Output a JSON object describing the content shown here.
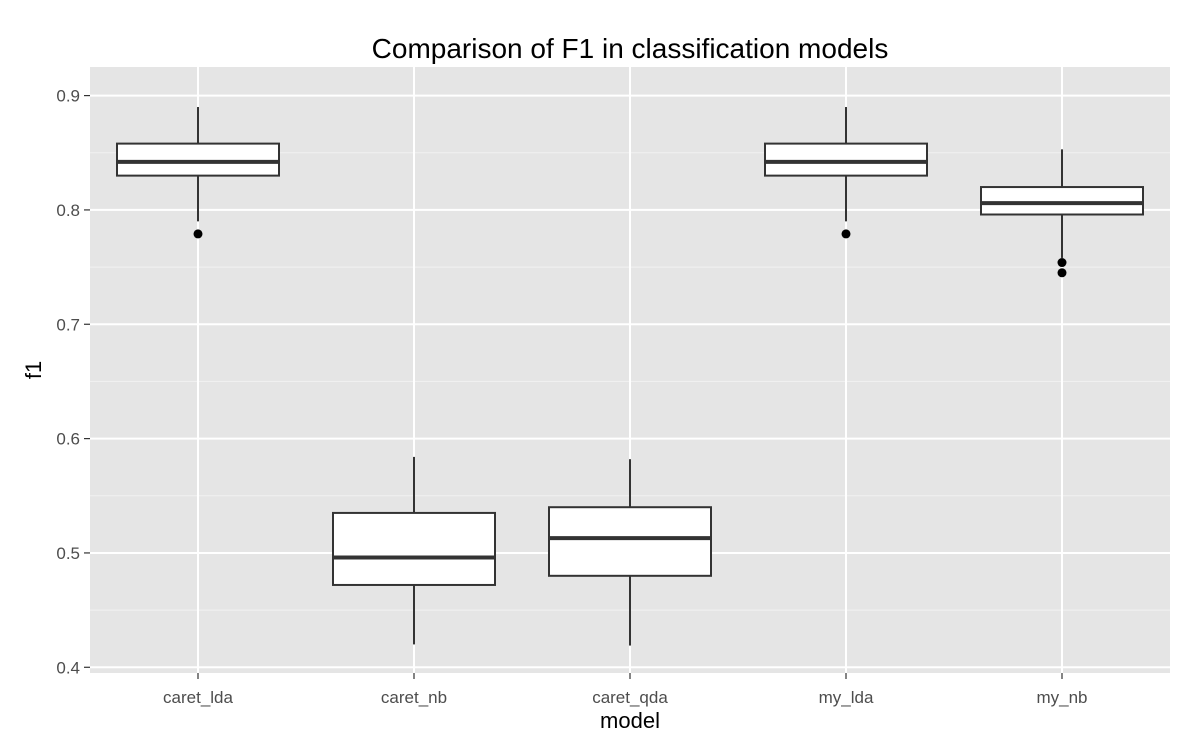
{
  "chart_data": {
    "type": "boxplot",
    "title": "Comparison of F1 in classification models",
    "xlabel": "model",
    "ylabel": "f1",
    "ylim": [
      0.395,
      0.925
    ],
    "yticks": [
      0.4,
      0.5,
      0.6,
      0.7,
      0.8,
      0.9
    ],
    "ytick_labels": [
      "0.4",
      "0.5",
      "0.6",
      "0.7",
      "0.8",
      "0.9"
    ],
    "categories": [
      "caret_lda",
      "caret_nb",
      "caret_qda",
      "my_lda",
      "my_nb"
    ],
    "grid": true,
    "legend": "none",
    "colors": {
      "panel_background": "#e5e5e5",
      "grid_major": "#ffffff",
      "grid_minor": "#f2f2f2",
      "box_fill": "#ffffff",
      "box_stroke": "#333333",
      "outlier": "#000000"
    },
    "boxes": [
      {
        "category": "caret_lda",
        "whisker_low": 0.79,
        "q1": 0.83,
        "median": 0.842,
        "q3": 0.858,
        "whisker_high": 0.89,
        "outliers": [
          0.779
        ]
      },
      {
        "category": "caret_nb",
        "whisker_low": 0.42,
        "q1": 0.472,
        "median": 0.496,
        "q3": 0.535,
        "whisker_high": 0.584,
        "outliers": []
      },
      {
        "category": "caret_qda",
        "whisker_low": 0.419,
        "q1": 0.48,
        "median": 0.513,
        "q3": 0.54,
        "whisker_high": 0.582,
        "outliers": []
      },
      {
        "category": "my_lda",
        "whisker_low": 0.79,
        "q1": 0.83,
        "median": 0.842,
        "q3": 0.858,
        "whisker_high": 0.89,
        "outliers": [
          0.779
        ]
      },
      {
        "category": "my_nb",
        "whisker_low": 0.758,
        "q1": 0.796,
        "median": 0.806,
        "q3": 0.82,
        "whisker_high": 0.853,
        "outliers": [
          0.754,
          0.745
        ]
      }
    ]
  }
}
